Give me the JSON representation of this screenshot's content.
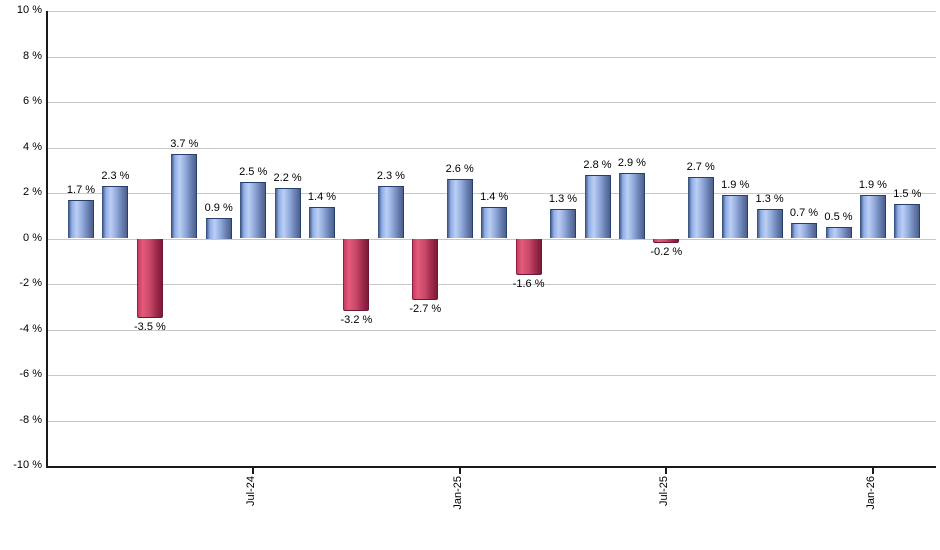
{
  "chart_data": {
    "type": "bar",
    "title": "",
    "xlabel": "",
    "ylabel": "",
    "ylim": [
      -10,
      10
    ],
    "grid": true,
    "legend_position": "none",
    "values": [
      1.7,
      2.3,
      -3.5,
      3.7,
      0.9,
      2.5,
      2.2,
      1.4,
      -3.2,
      2.3,
      -2.7,
      2.6,
      1.4,
      -1.6,
      1.3,
      2.8,
      2.9,
      -0.2,
      2.7,
      1.9,
      1.3,
      0.7,
      0.5,
      1.9,
      1.5
    ],
    "bar_value_labels": [
      "1.7 %",
      "2.3 %",
      "-3.5 %",
      "3.7 %",
      "0.9 %",
      "2.5 %",
      "2.2 %",
      "1.4 %",
      "-3.2 %",
      "2.3 %",
      "-2.7 %",
      "2.6 %",
      "1.4 %",
      "-1.6 %",
      "1.3 %",
      "2.8 %",
      "2.9 %",
      "-0.2 %",
      "2.7 %",
      "1.9 %",
      "1.3 %",
      "0.7 %",
      "0.5 %",
      "1.9 %",
      "1.5 %"
    ],
    "y_ticks": [
      {
        "value": 10,
        "label": "10 %"
      },
      {
        "value": 8,
        "label": "8 %"
      },
      {
        "value": 6,
        "label": "6 %"
      },
      {
        "value": 4,
        "label": "4 %"
      },
      {
        "value": 2,
        "label": "2 %"
      },
      {
        "value": 0,
        "label": "0 %"
      },
      {
        "value": -2,
        "label": "-2 %"
      },
      {
        "value": -4,
        "label": "-4 %"
      },
      {
        "value": -6,
        "label": "-6 %"
      },
      {
        "value": -8,
        "label": "-8 %"
      },
      {
        "value": -10,
        "label": "-10 %"
      }
    ],
    "x_ticks": [
      {
        "bar_index": 5,
        "label": "Jul-24"
      },
      {
        "bar_index": 11,
        "label": "Jan-25"
      },
      {
        "bar_index": 17,
        "label": "Jul-25"
      },
      {
        "bar_index": 23,
        "label": "Jan-26"
      }
    ],
    "colors": {
      "positive_bar": "#8fafe9",
      "positive_bar_edge": "#26406e",
      "negative_bar": "#c93b60",
      "negative_bar_edge": "#6f1634",
      "gridline": "#c8c8c8",
      "axis": "#1a1a1a",
      "label_text": "#000000"
    }
  }
}
